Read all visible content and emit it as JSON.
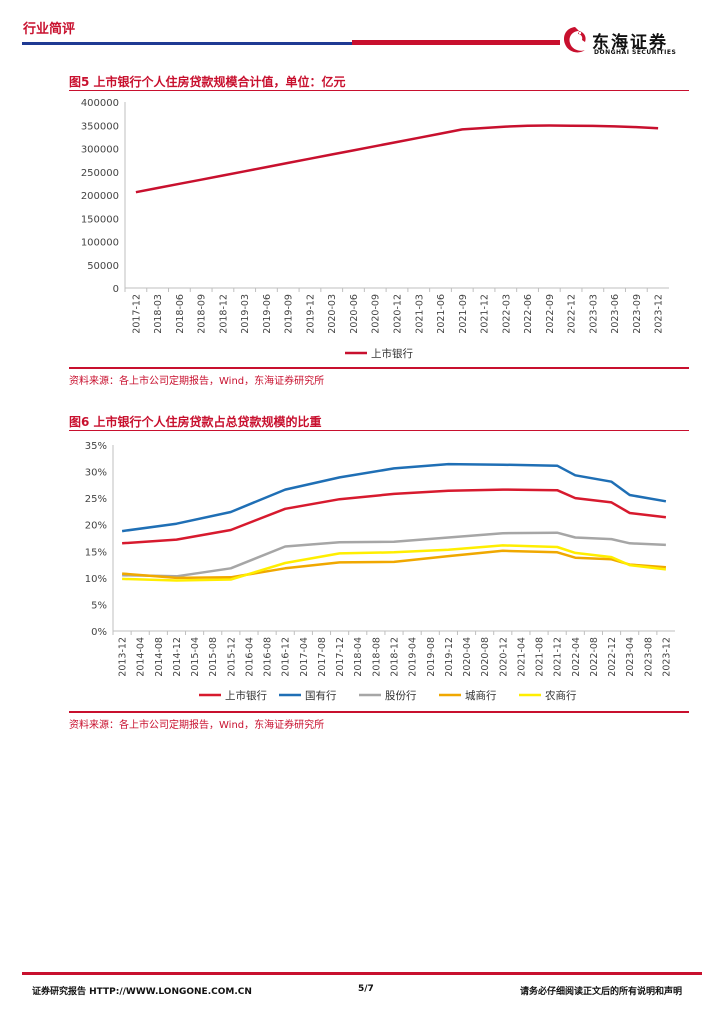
{
  "header": {
    "title": "行业简评",
    "logo_cn": "东海证券",
    "logo_en": "DONGHAI SECURITIES",
    "brand_red": "#c8102e",
    "brand_blue": "#1f3a93"
  },
  "figure5": {
    "title": "图5  上市银行个人住房贷款规模合计值，单位：亿元",
    "source": "资料来源：各上市公司定期报告，Wind，东海证券研究所",
    "chart_data": {
      "type": "line",
      "title": "图5  上市银行个人住房贷款规模合计值，单位：亿元",
      "xlabel": "",
      "ylabel": "",
      "ylim": [
        0,
        400000
      ],
      "yticks": [
        "400000",
        "350000",
        "300000",
        "250000",
        "200000",
        "150000",
        "100000",
        "50000",
        "0"
      ],
      "categories": [
        "2017-12",
        "2018-03",
        "2018-06",
        "2018-09",
        "2018-12",
        "2019-03",
        "2019-06",
        "2019-09",
        "2019-12",
        "2020-03",
        "2020-06",
        "2020-09",
        "2020-12",
        "2021-03",
        "2021-06",
        "2021-09",
        "2021-12",
        "2022-03",
        "2022-06",
        "2022-09",
        "2022-12",
        "2023-03",
        "2023-06",
        "2023-09",
        "2023-12"
      ],
      "series": [
        {
          "name": "上市银行",
          "color": "#c8102e",
          "values": [
            206000,
            215000,
            224000,
            233000,
            242000,
            251000,
            260000,
            269000,
            278000,
            287000,
            296000,
            305000,
            314000,
            323000,
            332000,
            341000,
            344000,
            347000,
            349000,
            349500,
            349000,
            348500,
            347500,
            346000,
            343500
          ]
        }
      ],
      "legend_position": "bottom"
    }
  },
  "figure6": {
    "title": "图6  上市银行个人住房贷款占总贷款规模的比重",
    "source": "资料来源：各上市公司定期报告，Wind，东海证券研究所",
    "chart_data": {
      "type": "line",
      "title": "图6  上市银行个人住房贷款占总贷款规模的比重",
      "xlabel": "",
      "ylabel": "",
      "ylim": [
        0,
        35
      ],
      "yticks": [
        "35%",
        "30%",
        "25%",
        "20%",
        "15%",
        "10%",
        "5%",
        "0%"
      ],
      "categories": [
        "2013-12",
        "2014-04",
        "2014-08",
        "2014-12",
        "2015-04",
        "2015-08",
        "2015-12",
        "2016-04",
        "2016-08",
        "2016-12",
        "2017-04",
        "2017-08",
        "2017-12",
        "2018-04",
        "2018-08",
        "2018-12",
        "2019-04",
        "2019-08",
        "2019-12",
        "2020-04",
        "2020-08",
        "2020-12",
        "2021-04",
        "2021-08",
        "2021-12",
        "2022-04",
        "2022-08",
        "2022-12",
        "2023-04",
        "2023-08",
        "2023-12"
      ],
      "series": [
        {
          "name": "上市银行",
          "color": "#d71a2e",
          "points": [
            [
              "2013-12",
              16.5
            ],
            [
              "2014-12",
              17.2
            ],
            [
              "2015-12",
              19.0
            ],
            [
              "2016-12",
              23.0
            ],
            [
              "2017-12",
              24.8
            ],
            [
              "2018-12",
              25.8
            ],
            [
              "2019-12",
              26.4
            ],
            [
              "2020-12",
              26.6
            ],
            [
              "2021-12",
              26.5
            ],
            [
              "2022-04",
              25.0
            ],
            [
              "2022-12",
              24.2
            ],
            [
              "2023-04",
              22.2
            ],
            [
              "2023-12",
              21.4
            ]
          ]
        },
        {
          "name": "国有行",
          "color": "#1f6fb5",
          "points": [
            [
              "2013-12",
              18.8
            ],
            [
              "2014-12",
              20.2
            ],
            [
              "2015-12",
              22.4
            ],
            [
              "2016-12",
              26.6
            ],
            [
              "2017-12",
              28.9
            ],
            [
              "2018-12",
              30.6
            ],
            [
              "2019-12",
              31.4
            ],
            [
              "2020-12",
              31.3
            ],
            [
              "2021-12",
              31.1
            ],
            [
              "2022-04",
              29.3
            ],
            [
              "2022-12",
              28.1
            ],
            [
              "2023-04",
              25.6
            ],
            [
              "2023-12",
              24.4
            ]
          ]
        },
        {
          "name": "股份行",
          "color": "#a6a6a6",
          "points": [
            [
              "2013-12",
              10.5
            ],
            [
              "2014-12",
              10.3
            ],
            [
              "2015-12",
              11.8
            ],
            [
              "2016-12",
              15.9
            ],
            [
              "2017-12",
              16.7
            ],
            [
              "2018-12",
              16.8
            ],
            [
              "2019-12",
              17.6
            ],
            [
              "2020-12",
              18.4
            ],
            [
              "2021-12",
              18.5
            ],
            [
              "2022-04",
              17.6
            ],
            [
              "2022-12",
              17.3
            ],
            [
              "2023-04",
              16.5
            ],
            [
              "2023-12",
              16.2
            ]
          ]
        },
        {
          "name": "城商行",
          "color": "#f0a800",
          "points": [
            [
              "2013-12",
              10.8
            ],
            [
              "2014-12",
              10.0
            ],
            [
              "2015-12",
              10.1
            ],
            [
              "2016-12",
              11.8
            ],
            [
              "2017-12",
              12.9
            ],
            [
              "2018-12",
              13.0
            ],
            [
              "2019-12",
              14.1
            ],
            [
              "2020-12",
              15.1
            ],
            [
              "2021-12",
              14.8
            ],
            [
              "2022-04",
              13.8
            ],
            [
              "2022-12",
              13.5
            ],
            [
              "2023-04",
              12.5
            ],
            [
              "2023-12",
              12.0
            ]
          ]
        },
        {
          "name": "农商行",
          "color": "#ffee00",
          "points": [
            [
              "2013-12",
              9.8
            ],
            [
              "2014-12",
              9.5
            ],
            [
              "2015-12",
              9.7
            ],
            [
              "2016-12",
              12.8
            ],
            [
              "2017-12",
              14.6
            ],
            [
              "2018-12",
              14.8
            ],
            [
              "2019-12",
              15.3
            ],
            [
              "2020-12",
              16.1
            ],
            [
              "2021-12",
              15.8
            ],
            [
              "2022-04",
              14.7
            ],
            [
              "2022-12",
              13.9
            ],
            [
              "2023-04",
              12.4
            ],
            [
              "2023-12",
              11.6
            ]
          ]
        }
      ],
      "legend_position": "bottom"
    }
  },
  "footer": {
    "left": "证券研究报告    HTTP://WWW.LONGONE.COM.CN",
    "page": "5/7",
    "right": "请务必仔细阅读正文后的所有说明和声明"
  }
}
